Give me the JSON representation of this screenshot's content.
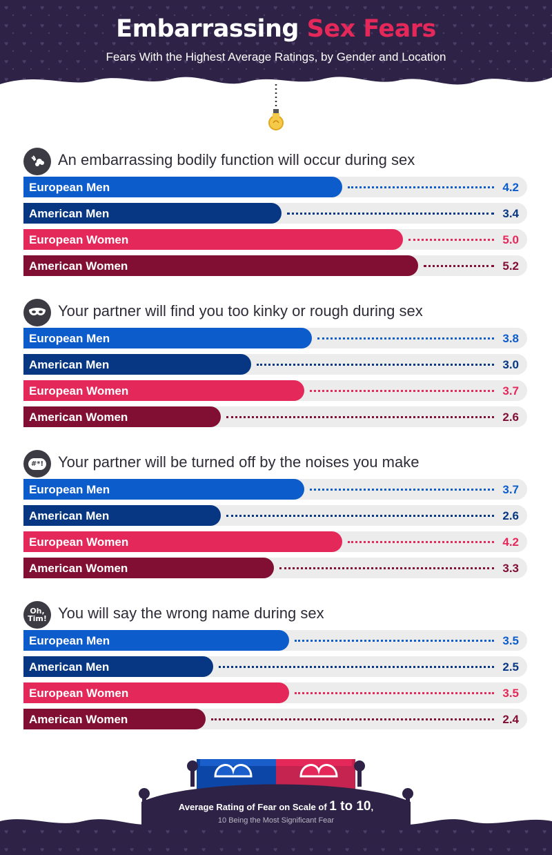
{
  "header": {
    "title_part1": "Embarrassing",
    "title_part2": "Sex Fears",
    "subtitle": "Fears With the Highest Average Ratings, by Gender and Location"
  },
  "colors": {
    "european_men": "#0c5ccc",
    "american_men": "#073782",
    "european_women": "#e5285a",
    "american_women": "#810f33",
    "background_dark": "#2e2346",
    "track": "#ececec"
  },
  "chart_data": {
    "type": "bar",
    "orientation": "horizontal",
    "title": "Embarrassing Sex Fears",
    "subtitle": "Fears With the Highest Average Ratings, by Gender and Location",
    "scale_max": 10,
    "series_names": [
      "European Men",
      "American Men",
      "European Women",
      "American Women"
    ],
    "groups": [
      {
        "question": "An embarrassing bodily function will occur during sex",
        "icon": "gas-cloud-icon",
        "icon_text": "",
        "values": [
          4.2,
          3.4,
          5.0,
          5.2
        ],
        "value_labels": [
          "4.2",
          "3.4",
          "5.0",
          "5.2"
        ]
      },
      {
        "question": "Your partner will find you too kinky or rough during sex",
        "icon": "eye-mask-icon",
        "icon_text": "",
        "values": [
          3.8,
          3.0,
          3.7,
          2.6
        ],
        "value_labels": [
          "3.8",
          "3.0",
          "3.7",
          "2.6"
        ]
      },
      {
        "question": "Your partner will be turned off by the noises you make",
        "icon": "speech-bubble-icon",
        "icon_text": "#*!",
        "values": [
          3.7,
          2.6,
          4.2,
          3.3
        ],
        "value_labels": [
          "3.7",
          "2.6",
          "4.2",
          "3.3"
        ]
      },
      {
        "question": "You will say the wrong name during sex",
        "icon": "oh-tim-icon",
        "icon_text": "Oh, Tim!",
        "values": [
          3.5,
          2.5,
          3.5,
          2.4
        ],
        "value_labels": [
          "3.5",
          "2.5",
          "3.5",
          "2.4"
        ]
      }
    ]
  },
  "footer": {
    "line1_prefix": "Average Rating of Fear on Scale of",
    "line1_big": "1 to 10",
    "line1_suffix": ",",
    "line2": "10 Being the Most Significant Fear"
  }
}
